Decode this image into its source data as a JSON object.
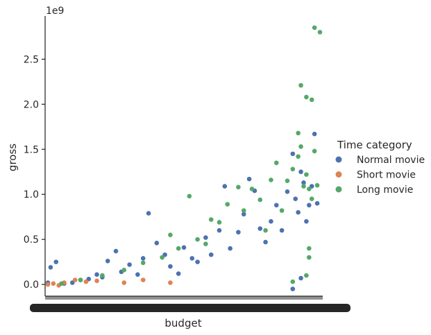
{
  "chart_data": {
    "type": "scatter",
    "title": "",
    "xlabel": "budget",
    "ylabel": "gross",
    "y_offset_text": "1e9",
    "ylim": [
      -130000000,
      2980000000
    ],
    "yticks": [
      0.0,
      0.5,
      1.0,
      1.5,
      2.0,
      2.5
    ],
    "ytick_labels": [
      "0.0",
      "0.5",
      "1.0",
      "1.5",
      "2.0",
      "2.5"
    ],
    "y_multiplier": 1000000000,
    "x_axis_note": "categorical budget axis with overlapping tick labels",
    "grid": false,
    "legend_title": "Time category",
    "legend_position": "right",
    "series": [
      {
        "name": "Normal movie",
        "color": "#4C72B0",
        "points": [
          [
            0.0,
            0.02
          ],
          [
            0.01,
            0.19
          ],
          [
            0.03,
            0.25
          ],
          [
            0.06,
            0.01
          ],
          [
            0.09,
            0.02
          ],
          [
            0.12,
            0.05
          ],
          [
            0.15,
            0.06
          ],
          [
            0.18,
            0.11
          ],
          [
            0.2,
            0.08
          ],
          [
            0.22,
            0.26
          ],
          [
            0.25,
            0.37
          ],
          [
            0.27,
            0.14
          ],
          [
            0.3,
            0.22
          ],
          [
            0.33,
            0.11
          ],
          [
            0.35,
            0.29
          ],
          [
            0.37,
            0.79
          ],
          [
            0.4,
            0.46
          ],
          [
            0.43,
            0.33
          ],
          [
            0.45,
            0.2
          ],
          [
            0.48,
            0.12
          ],
          [
            0.5,
            0.41
          ],
          [
            0.53,
            0.29
          ],
          [
            0.55,
            0.25
          ],
          [
            0.58,
            0.52
          ],
          [
            0.6,
            0.33
          ],
          [
            0.63,
            0.6
          ],
          [
            0.65,
            1.09
          ],
          [
            0.67,
            0.4
          ],
          [
            0.7,
            0.58
          ],
          [
            0.72,
            0.78
          ],
          [
            0.74,
            1.17
          ],
          [
            0.76,
            1.04
          ],
          [
            0.78,
            0.62
          ],
          [
            0.8,
            0.47
          ],
          [
            0.82,
            0.7
          ],
          [
            0.84,
            0.88
          ],
          [
            0.86,
            0.6
          ],
          [
            0.88,
            1.03
          ],
          [
            0.9,
            1.45
          ],
          [
            0.91,
            0.95
          ],
          [
            0.92,
            0.8
          ],
          [
            0.93,
            1.25
          ],
          [
            0.94,
            1.13
          ],
          [
            0.95,
            0.7
          ],
          [
            0.96,
            0.88
          ],
          [
            0.97,
            1.09
          ],
          [
            0.98,
            1.67
          ],
          [
            0.99,
            0.9
          ],
          [
            0.9,
            -0.05
          ],
          [
            0.93,
            0.07
          ]
        ]
      },
      {
        "name": "Short movie",
        "color": "#DD8452",
        "points": [
          [
            0.0,
            0.0
          ],
          [
            0.02,
            0.01
          ],
          [
            0.04,
            -0.01
          ],
          [
            0.06,
            0.02
          ],
          [
            0.1,
            0.05
          ],
          [
            0.14,
            0.03
          ],
          [
            0.18,
            0.04
          ],
          [
            0.28,
            0.02
          ],
          [
            0.35,
            0.05
          ],
          [
            0.45,
            0.02
          ]
        ]
      },
      {
        "name": "Long movie",
        "color": "#55A868",
        "points": [
          [
            0.05,
            0.01
          ],
          [
            0.12,
            0.05
          ],
          [
            0.2,
            0.1
          ],
          [
            0.28,
            0.16
          ],
          [
            0.35,
            0.24
          ],
          [
            0.42,
            0.3
          ],
          [
            0.45,
            0.55
          ],
          [
            0.48,
            0.4
          ],
          [
            0.52,
            0.98
          ],
          [
            0.55,
            0.5
          ],
          [
            0.58,
            0.45
          ],
          [
            0.6,
            0.72
          ],
          [
            0.63,
            0.69
          ],
          [
            0.66,
            0.89
          ],
          [
            0.7,
            1.08
          ],
          [
            0.72,
            0.82
          ],
          [
            0.75,
            1.06
          ],
          [
            0.78,
            0.94
          ],
          [
            0.8,
            0.6
          ],
          [
            0.82,
            1.16
          ],
          [
            0.84,
            1.35
          ],
          [
            0.86,
            0.82
          ],
          [
            0.88,
            1.15
          ],
          [
            0.9,
            1.28
          ],
          [
            0.92,
            1.42
          ],
          [
            0.93,
            1.53
          ],
          [
            0.94,
            1.09
          ],
          [
            0.95,
            1.22
          ],
          [
            0.96,
            1.06
          ],
          [
            0.97,
            0.95
          ],
          [
            0.98,
            1.48
          ],
          [
            0.99,
            1.1
          ],
          [
            0.93,
            2.21
          ],
          [
            0.95,
            2.08
          ],
          [
            0.97,
            2.05
          ],
          [
            0.98,
            2.85
          ],
          [
            1.0,
            2.8
          ],
          [
            0.95,
            0.1
          ],
          [
            0.9,
            0.03
          ],
          [
            0.96,
            0.4
          ],
          [
            0.92,
            1.68
          ],
          [
            0.96,
            0.3
          ]
        ]
      }
    ]
  }
}
